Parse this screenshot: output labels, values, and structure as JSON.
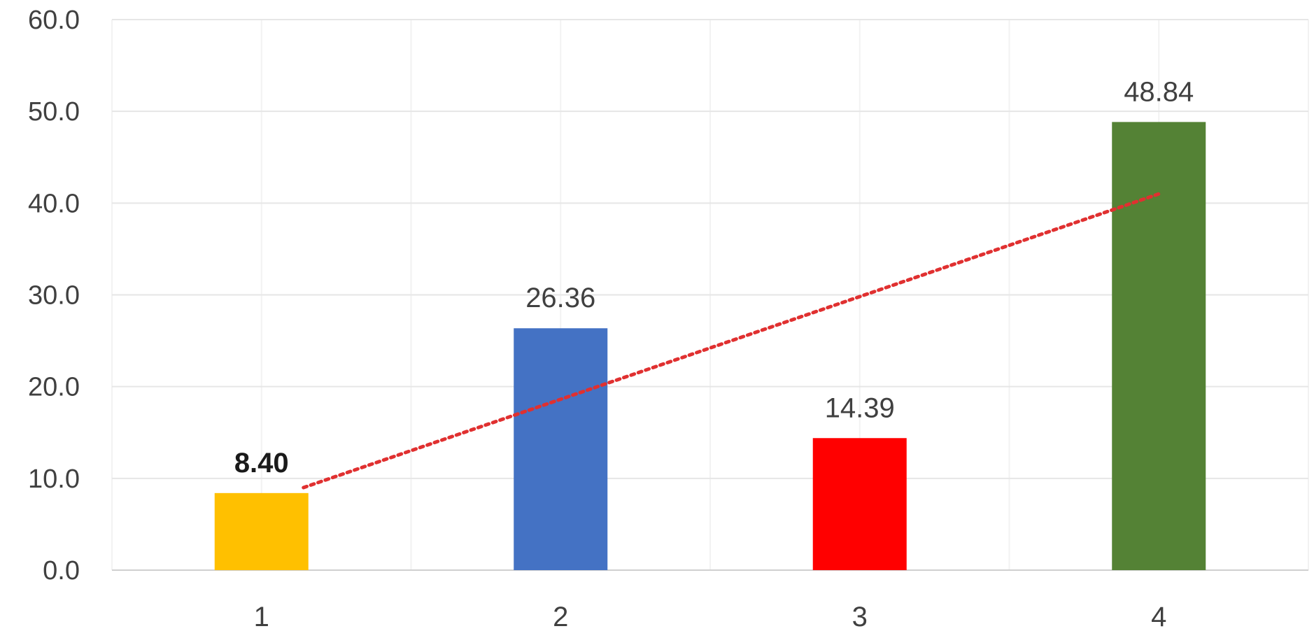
{
  "chart_data": {
    "type": "bar",
    "title": "",
    "xlabel": "",
    "ylabel": "",
    "categories": [
      "1",
      "2",
      "3",
      "4"
    ],
    "values": [
      8.4,
      26.36,
      14.39,
      48.84
    ],
    "value_labels": [
      "8.40",
      "26.36",
      "14.39",
      "48.84"
    ],
    "bar_colors": [
      "#FFC000",
      "#4472C4",
      "#FF0000",
      "#548235"
    ],
    "ylim": [
      0,
      60
    ],
    "yticks": [
      0,
      10,
      20,
      30,
      40,
      50,
      60
    ],
    "ytick_labels": [
      "0.0",
      "10.0",
      "20.0",
      "30.0",
      "40.0",
      "50.0",
      "60.0"
    ],
    "grid": true,
    "legend": "none",
    "trendline": {
      "type": "linear",
      "style": "dotted",
      "color": "#E03030",
      "from": {
        "category": "1",
        "y": 9.0
      },
      "to": {
        "category": "4",
        "y": 41.0
      }
    }
  }
}
